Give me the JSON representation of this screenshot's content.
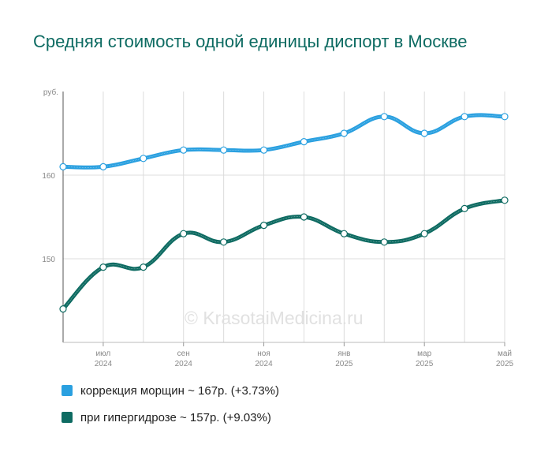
{
  "title": "Средняя стоимость одной единицы диспорт в Москве",
  "watermark": "© KrasotaiMedicina.ru",
  "chart_data": {
    "type": "line",
    "y_unit": "руб.",
    "ylim": [
      140,
      170
    ],
    "y_ticks": [
      150,
      160
    ],
    "x_tick_labels": [
      {
        "month": "июл",
        "year": "2024",
        "index": 1
      },
      {
        "month": "сен",
        "year": "2024",
        "index": 3
      },
      {
        "month": "ноя",
        "year": "2024",
        "index": 5
      },
      {
        "month": "янв",
        "year": "2025",
        "index": 7
      },
      {
        "month": "мар",
        "year": "2025",
        "index": 9
      },
      {
        "month": "май",
        "year": "2025",
        "index": 11
      }
    ],
    "x": [
      "2024-06",
      "2024-07",
      "2024-08",
      "2024-09",
      "2024-10",
      "2024-11",
      "2024-12",
      "2025-01",
      "2025-02",
      "2025-03",
      "2025-04",
      "2025-05"
    ],
    "series": [
      {
        "name": "коррекция морщин ~ 167р. (+3.73%)",
        "color": "#2aa0e0",
        "values": [
          161,
          161,
          162,
          163,
          163,
          163,
          164,
          165,
          167,
          165,
          167,
          167
        ]
      },
      {
        "name": "при гипергидрозе ~ 157р. (+9.03%)",
        "color": "#0e6b62",
        "values": [
          144,
          149,
          149,
          153,
          152,
          154,
          155,
          153,
          152,
          153,
          156,
          157
        ]
      }
    ],
    "grid": true,
    "legend_position": "bottom-left"
  }
}
